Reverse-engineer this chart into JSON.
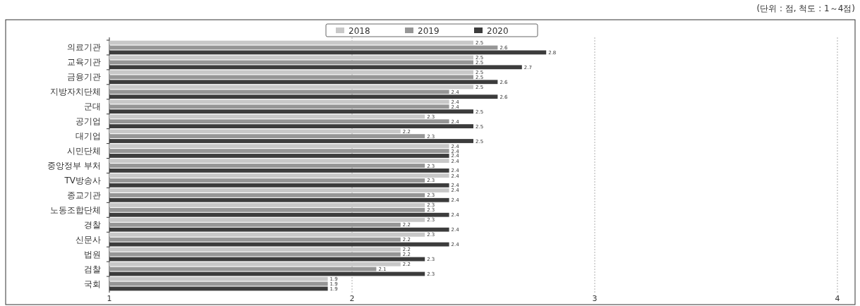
{
  "chart_data": {
    "type": "bar",
    "orientation": "horizontal",
    "annotations": [
      "(단위 : 점, 척도 : 1～4점)"
    ],
    "categories": [
      "의료기관",
      "교육기관",
      "금융기관",
      "지방자치단체",
      "군대",
      "공기업",
      "대기업",
      "시민단체",
      "중앙정부 부처",
      "TV방송사",
      "종교기관",
      "노동조합단체",
      "경찰",
      "신문사",
      "법원",
      "검찰",
      "국회"
    ],
    "series": [
      {
        "name": "2018",
        "color": "#c8c8c8",
        "values": [
          2.5,
          2.5,
          2.5,
          2.5,
          2.4,
          2.3,
          2.2,
          2.4,
          2.4,
          2.4,
          2.4,
          2.3,
          2.3,
          2.3,
          2.2,
          2.2,
          1.9
        ]
      },
      {
        "name": "2019",
        "color": "#969696",
        "values": [
          2.6,
          2.5,
          2.5,
          2.4,
          2.4,
          2.4,
          2.3,
          2.4,
          2.3,
          2.3,
          2.3,
          2.3,
          2.2,
          2.2,
          2.2,
          2.1,
          1.9
        ]
      },
      {
        "name": "2020",
        "color": "#3c3c3c",
        "values": [
          2.8,
          2.7,
          2.6,
          2.6,
          2.5,
          2.5,
          2.5,
          2.4,
          2.4,
          2.4,
          2.4,
          2.4,
          2.4,
          2.4,
          2.3,
          2.3,
          1.9
        ]
      }
    ],
    "xlim": [
      1,
      4
    ],
    "xticks": [
      1,
      2,
      3,
      4
    ],
    "grid": "x",
    "legend": "top",
    "data_labels": true
  }
}
